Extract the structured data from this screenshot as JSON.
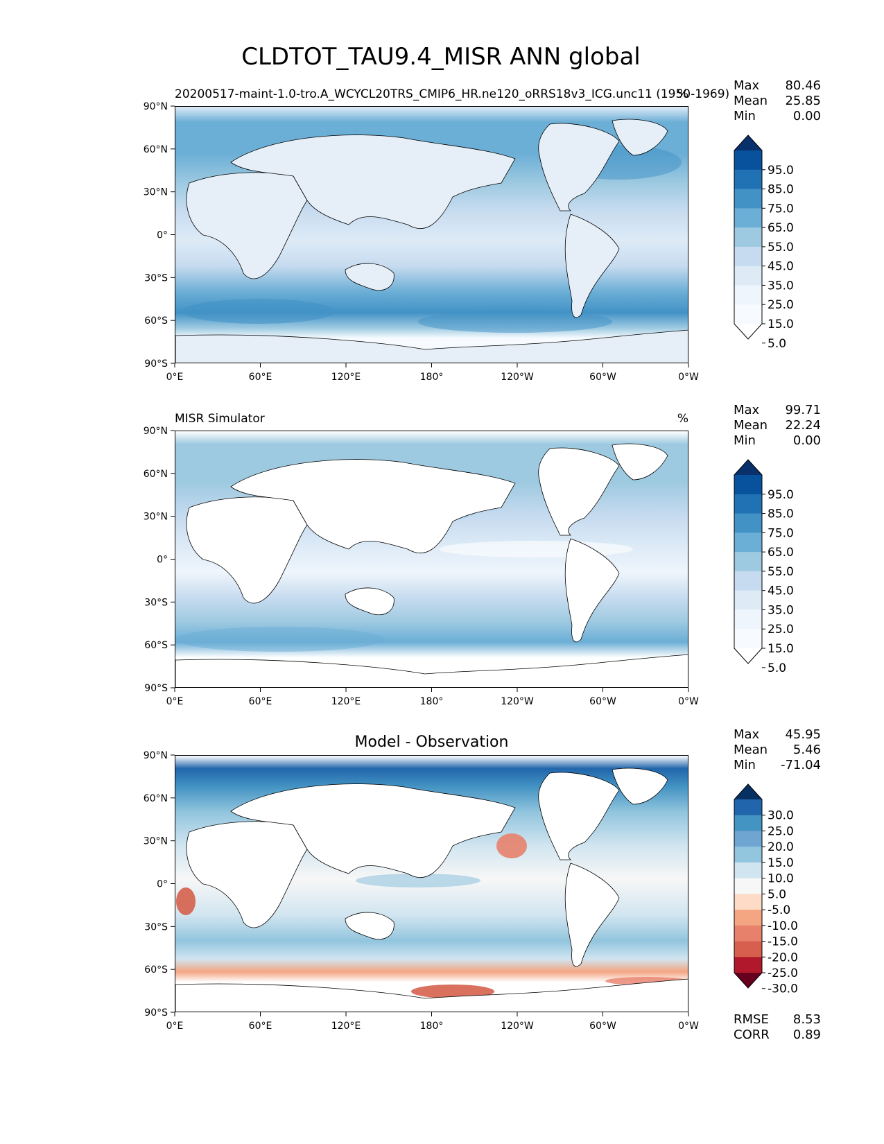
{
  "figure": {
    "title": "CLDTOT_TAU9.4_MISR ANN global"
  },
  "axes": {
    "lat_ticks": [
      "90°N",
      "60°N",
      "30°N",
      "0°",
      "30°S",
      "60°S",
      "90°S"
    ],
    "lon_ticks": [
      "0°E",
      "60°E",
      "120°E",
      "180°",
      "120°W",
      "60°W",
      "0°W"
    ]
  },
  "panels": [
    {
      "left_title": "20200517-maint-1.0-tro.A_WCYCL20TRS_CMIP6_HR.ne120_oRRS18v3_ICG.unc11 (1950-1969)",
      "center_title": "",
      "units": "%",
      "stats": [
        {
          "label": "Max",
          "value": "80.46"
        },
        {
          "label": "Mean",
          "value": "25.85"
        },
        {
          "label": "Min",
          "value": "0.00"
        }
      ],
      "colorbar": {
        "labels": [
          "95.0",
          "85.0",
          "75.0",
          "65.0",
          "55.0",
          "45.0",
          "35.0",
          "25.0",
          "15.0",
          "5.0"
        ],
        "colors": [
          "#08306b",
          "#08519c",
          "#2171b5",
          "#4292c6",
          "#6baed6",
          "#9ecae1",
          "#c6dbef",
          "#deebf7",
          "#eef5fc",
          "#f7fbff",
          "#ffffff"
        ]
      }
    },
    {
      "left_title": "MISR Simulator",
      "center_title": "",
      "units": "%",
      "stats": [
        {
          "label": "Max",
          "value": "99.71"
        },
        {
          "label": "Mean",
          "value": "22.24"
        },
        {
          "label": "Min",
          "value": "0.00"
        }
      ],
      "colorbar": {
        "labels": [
          "95.0",
          "85.0",
          "75.0",
          "65.0",
          "55.0",
          "45.0",
          "35.0",
          "25.0",
          "15.0",
          "5.0"
        ],
        "colors": [
          "#08306b",
          "#08519c",
          "#2171b5",
          "#4292c6",
          "#6baed6",
          "#9ecae1",
          "#c6dbef",
          "#deebf7",
          "#eef5fc",
          "#f7fbff",
          "#ffffff"
        ]
      }
    },
    {
      "left_title": "",
      "center_title": "Model - Observation",
      "units": "",
      "stats": [
        {
          "label": "Max",
          "value": "45.95"
        },
        {
          "label": "Mean",
          "value": "5.46"
        },
        {
          "label": "Min",
          "value": "-71.04"
        }
      ],
      "colorbar": {
        "labels": [
          "30.0",
          "25.0",
          "20.0",
          "15.0",
          "10.0",
          "5.0",
          "-5.0",
          "-10.0",
          "-15.0",
          "-20.0",
          "-25.0",
          "-30.0"
        ],
        "colors": [
          "#053061",
          "#2166ac",
          "#4393c3",
          "#6ea6d1",
          "#92c5de",
          "#d1e5f0",
          "#f7f7f7",
          "#fddbc7",
          "#f4a582",
          "#e7816b",
          "#d6604d",
          "#b2182b",
          "#67001f"
        ]
      },
      "extra_stats": [
        {
          "label": "RMSE",
          "value": "8.53"
        },
        {
          "label": "CORR",
          "value": "0.89"
        }
      ]
    }
  ],
  "map_colors": {
    "land": "#ffffff",
    "coast": "#000000"
  }
}
